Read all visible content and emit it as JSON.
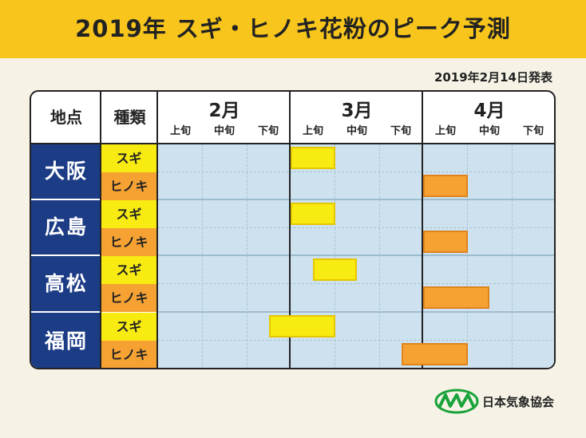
{
  "title": "2019年 スギ・ヒノキ花粉のピーク予測",
  "issue_date": "2019年2月14日発表",
  "header": {
    "location_label": "地点",
    "type_label": "種類",
    "months": [
      {
        "label": "2月",
        "dekads": [
          "上旬",
          "中旬",
          "下旬"
        ]
      },
      {
        "label": "3月",
        "dekads": [
          "上旬",
          "中旬",
          "下旬"
        ]
      },
      {
        "label": "4月",
        "dekads": [
          "上旬",
          "中旬",
          "下旬"
        ]
      }
    ]
  },
  "colors": {
    "title_bar": "#f7c51c",
    "city_cell": "#1c3c86",
    "sugi": "#f7eb11",
    "hinoki": "#f6a233",
    "plot_background": "#cde2ee"
  },
  "chart_data": {
    "type": "gantt",
    "x_unit": "旬 index (0 = 2月上旬, 9 = 4月下旬 end)",
    "categories": [
      "2月上旬",
      "2月中旬",
      "2月下旬",
      "3月上旬",
      "3月中旬",
      "3月下旬",
      "4月上旬",
      "4月中旬",
      "4月下旬"
    ],
    "cities": [
      {
        "name": "大阪",
        "rows": [
          {
            "type": "スギ",
            "kind": "sugi",
            "start": 3.0,
            "end": 4.0
          },
          {
            "type": "ヒノキ",
            "kind": "hinoki",
            "start": 6.0,
            "end": 7.0
          }
        ]
      },
      {
        "name": "広島",
        "rows": [
          {
            "type": "スギ",
            "kind": "sugi",
            "start": 3.0,
            "end": 4.0
          },
          {
            "type": "ヒノキ",
            "kind": "hinoki",
            "start": 6.0,
            "end": 7.0
          }
        ]
      },
      {
        "name": "高松",
        "rows": [
          {
            "type": "スギ",
            "kind": "sugi",
            "start": 3.5,
            "end": 4.5
          },
          {
            "type": "ヒノキ",
            "kind": "hinoki",
            "start": 6.0,
            "end": 7.5
          }
        ]
      },
      {
        "name": "福岡",
        "rows": [
          {
            "type": "スギ",
            "kind": "sugi",
            "start": 2.5,
            "end": 4.0
          },
          {
            "type": "ヒノキ",
            "kind": "hinoki",
            "start": 5.5,
            "end": 7.0
          }
        ]
      }
    ]
  },
  "footer": {
    "logo_icon": "jwa-logo-icon",
    "logo_text": "日本気象協会"
  }
}
